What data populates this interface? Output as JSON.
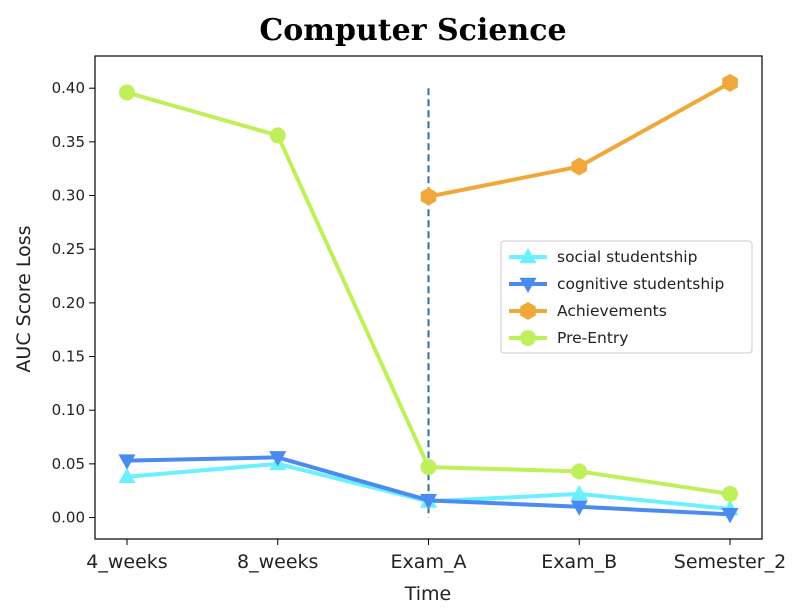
{
  "chart_data": {
    "type": "line",
    "title": "Computer Science",
    "xlabel": "Time",
    "ylabel": "AUC Score Loss",
    "categories": [
      "4_weeks",
      "8_weeks",
      "Exam_A",
      "Exam_B",
      "Semester_2"
    ],
    "ylim": [
      -0.02,
      0.43
    ],
    "yticks": [
      "0.00",
      "0.05",
      "0.10",
      "0.15",
      "0.20",
      "0.25",
      "0.30",
      "0.35",
      "0.40"
    ],
    "grid": false,
    "legend_position": "center-right",
    "vertical_marker": {
      "x": "Exam_A",
      "y_range": [
        0.0,
        0.4
      ],
      "style": "dashed",
      "color": "#2f6ea8"
    },
    "series": [
      {
        "name": "social studentship",
        "color": "#6cf0ff",
        "marker": "triangle-up",
        "values": [
          0.038,
          0.05,
          0.015,
          0.022,
          0.008
        ]
      },
      {
        "name": "cognitive studentship",
        "color": "#4a8bef",
        "marker": "triangle-down",
        "values": [
          0.053,
          0.056,
          0.016,
          0.01,
          0.003
        ]
      },
      {
        "name": "Achievements",
        "color": "#f0a83a",
        "marker": "hexagon",
        "values": [
          null,
          null,
          0.299,
          0.327,
          0.405
        ]
      },
      {
        "name": "Pre-Entry",
        "color": "#bff05a",
        "marker": "circle",
        "values": [
          0.396,
          0.356,
          0.047,
          0.043,
          0.022
        ]
      }
    ]
  }
}
